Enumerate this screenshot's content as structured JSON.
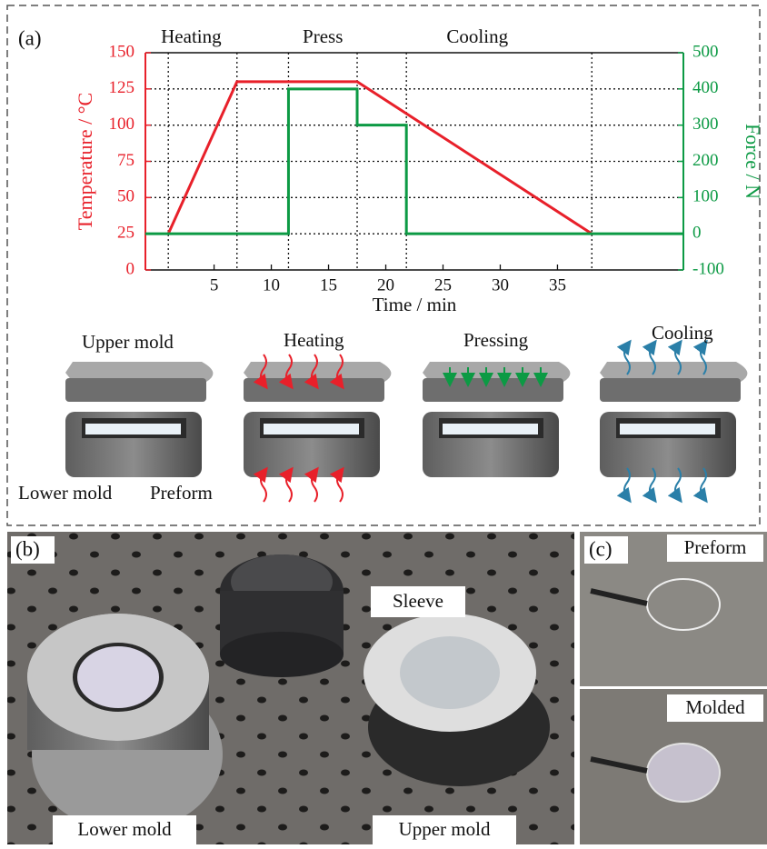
{
  "chart_data": {
    "type": "line",
    "panel_label": "(a)",
    "xlabel": "Time / min",
    "ylabel": "Temperature / °C",
    "y2label": "Force / N",
    "xlim": [
      -1,
      46
    ],
    "xticks": [
      5,
      10,
      15,
      20,
      25,
      30,
      35
    ],
    "ylim": [
      0,
      150
    ],
    "yticks": [
      0,
      25,
      50,
      75,
      100,
      125,
      150
    ],
    "y2lim": [
      -100,
      500
    ],
    "y2ticks": [
      -100,
      0,
      100,
      200,
      300,
      400,
      500
    ],
    "ycolor": "#e8202a",
    "y2color": "#0c9a44",
    "grid": true,
    "vlines": [
      1,
      7,
      11.5,
      17.5,
      21.8,
      38
    ],
    "phases": [
      {
        "label": "Heating",
        "x": 3
      },
      {
        "label": "Press",
        "x": 14.5
      },
      {
        "label": "Cooling",
        "x": 28
      }
    ],
    "series": [
      {
        "color": "#e8202a",
        "x": [
          1,
          7,
          17.5,
          38
        ],
        "values": [
          25,
          130,
          130,
          25
        ]
      },
      {
        "color": "#0c9a44",
        "axis": "y2",
        "x": [
          -1,
          11.5,
          11.5,
          17.5,
          17.5,
          21.8,
          21.8,
          46
        ],
        "values": [
          0,
          0,
          400,
          400,
          300,
          300,
          0,
          0
        ]
      }
    ]
  },
  "illustration": {
    "upper_mold": "Upper mold",
    "heating": "Heating",
    "pressing": "Pressing",
    "cooling": "Cooling",
    "lower_mold": "Lower mold",
    "preform": "Preform"
  },
  "photo_b": {
    "panel_label": "(b)",
    "sleeve": "Sleeve",
    "lower_mold": "Lower mold",
    "upper_mold": "Upper mold"
  },
  "photo_c": {
    "panel_label": "(c)",
    "preform": "Preform",
    "molded": "Molded"
  }
}
